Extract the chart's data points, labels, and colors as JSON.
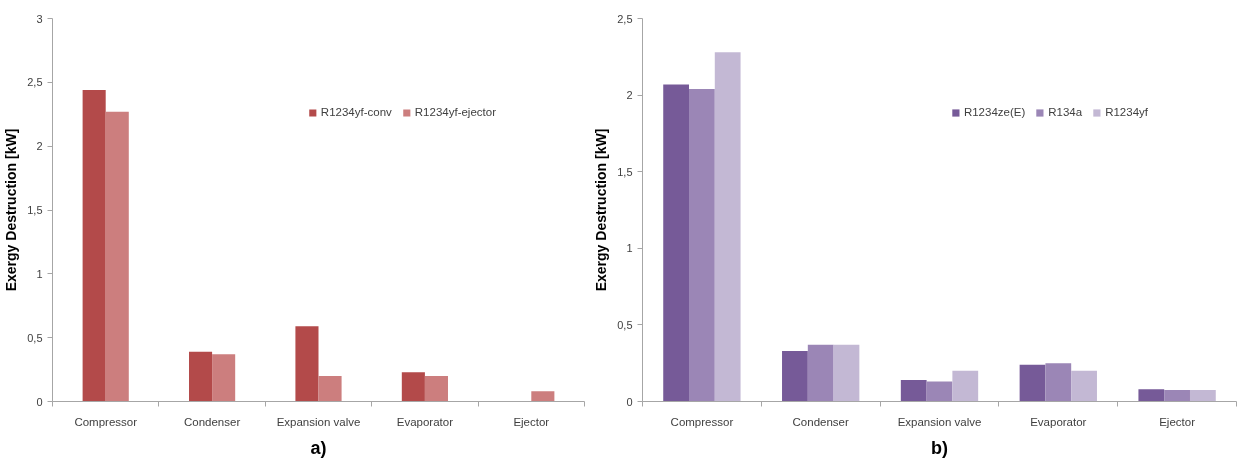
{
  "chart_data": [
    {
      "type": "bar",
      "ylabel": "Exergy Destruction [kW]",
      "annotations": [
        "a)"
      ],
      "categories": [
        "Compressor",
        "Condenser",
        "Expansion valve",
        "Evaporator",
        "Ejector"
      ],
      "series": [
        {
          "name": "R1234yf-conv",
          "color": "#b34a4a",
          "values": [
            2.44,
            0.39,
            0.59,
            0.23,
            null
          ]
        },
        {
          "name": "R1234yf-ejector",
          "color": "#cc7e7e",
          "values": [
            2.27,
            0.37,
            0.2,
            0.2,
            0.08
          ]
        }
      ],
      "ylim": [
        0,
        3
      ],
      "yticks": [
        0,
        {
          "value": 0.5,
          "label": "0,5"
        },
        1,
        {
          "value": 1.5,
          "label": "1,5"
        },
        2,
        {
          "value": 2.5,
          "label": "2,5"
        },
        3
      ],
      "legend": "top right"
    },
    {
      "type": "bar",
      "ylabel": "Exergy Destruction [kW]",
      "annotations": [
        "b)"
      ],
      "categories": [
        "Compressor",
        "Condenser",
        "Expansion valve",
        "Evaporator",
        "Ejector"
      ],
      "series": [
        {
          "name": "R1234ze(E)",
          "color": "#765a98",
          "values": [
            2.07,
            0.33,
            0.14,
            0.24,
            0.08
          ]
        },
        {
          "name": "R134a",
          "color": "#9b86b6",
          "values": [
            2.04,
            0.37,
            0.13,
            0.25,
            0.075
          ]
        },
        {
          "name": "R1234yf",
          "color": "#c3b8d4",
          "values": [
            2.28,
            0.37,
            0.2,
            0.2,
            0.075
          ]
        }
      ],
      "ylim": [
        0,
        2.5
      ],
      "yticks": [
        0,
        {
          "value": 0.5,
          "label": "0,5"
        },
        1,
        {
          "value": 1.5,
          "label": "1,5"
        },
        2,
        {
          "value": 2.5,
          "label": "2,5"
        }
      ],
      "legend": "top right"
    }
  ]
}
